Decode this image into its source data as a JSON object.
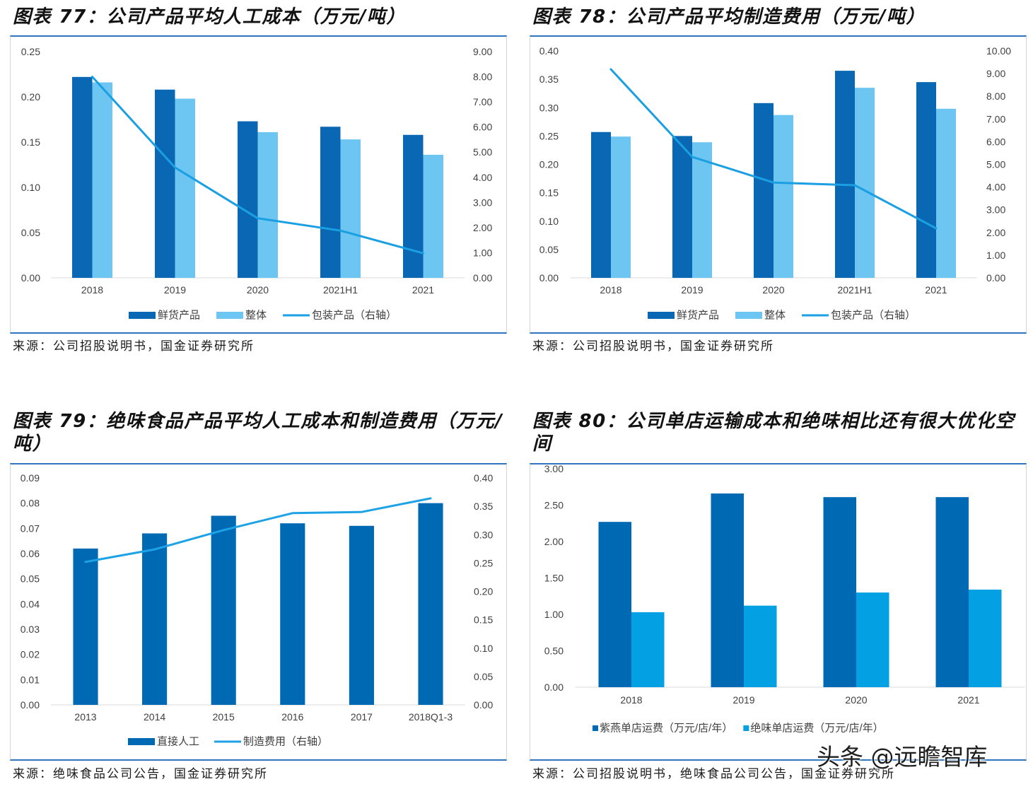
{
  "chart_data": [
    {
      "type": "bar",
      "title": "图表 77：公司产品平均人工成本（万元/吨）",
      "source": "来源：公司招股说明书，国金证券研究所",
      "categories": [
        "2018",
        "2019",
        "2020",
        "2021H1",
        "2021"
      ],
      "ylim": [
        0,
        0.25
      ],
      "yticks": [
        "0.00",
        "0.05",
        "0.10",
        "0.15",
        "0.20",
        "0.25"
      ],
      "y2lim": [
        0,
        9
      ],
      "y2ticks": [
        "0.00",
        "1.00",
        "2.00",
        "3.00",
        "4.00",
        "5.00",
        "6.00",
        "7.00",
        "8.00",
        "9.00"
      ],
      "grid": false,
      "legend": "bottom",
      "series": [
        {
          "name": "鲜货产品",
          "type": "bar",
          "secondary_axis": false,
          "color": "#0A67B4",
          "values": [
            0.222,
            0.208,
            0.173,
            0.167,
            0.158
          ]
        },
        {
          "name": "整体",
          "type": "bar",
          "secondary_axis": false,
          "color": "#6DC5F1",
          "values": [
            0.216,
            0.198,
            0.161,
            0.153,
            0.136
          ]
        },
        {
          "name": "包装产品（右轴）",
          "type": "line",
          "secondary_axis": true,
          "color": "#1B9FE3",
          "values": [
            8.0,
            4.39,
            2.37,
            1.88,
            0.98
          ]
        }
      ]
    },
    {
      "type": "bar",
      "title": "图表 78：公司产品平均制造费用（万元/吨）",
      "source": "来源：公司招股说明书，国金证券研究所",
      "categories": [
        "2018",
        "2019",
        "2020",
        "2021H1",
        "2021"
      ],
      "ylim": [
        0,
        0.4
      ],
      "yticks": [
        "0.00",
        "0.05",
        "0.10",
        "0.15",
        "0.20",
        "0.25",
        "0.30",
        "0.35",
        "0.40"
      ],
      "y2lim": [
        0,
        10
      ],
      "y2ticks": [
        "0.00",
        "1.00",
        "2.00",
        "3.00",
        "4.00",
        "5.00",
        "6.00",
        "7.00",
        "8.00",
        "9.00",
        "10.00"
      ],
      "grid": false,
      "legend": "bottom",
      "series": [
        {
          "name": "鲜货产品",
          "type": "bar",
          "secondary_axis": false,
          "color": "#0A67B4",
          "values": [
            0.257,
            0.25,
            0.308,
            0.365,
            0.345
          ]
        },
        {
          "name": "整体",
          "type": "bar",
          "secondary_axis": false,
          "color": "#6DC5F1",
          "values": [
            0.249,
            0.239,
            0.287,
            0.335,
            0.298
          ]
        },
        {
          "name": "包装产品（右轴）",
          "type": "line",
          "secondary_axis": true,
          "color": "#1B9FE3",
          "values": [
            9.19,
            5.33,
            4.2,
            4.08,
            2.18
          ]
        }
      ]
    },
    {
      "type": "bar",
      "title": "图表 79：绝味食品产品平均人工成本和制造费用（万元/吨）",
      "source": "来源：绝味食品公司公告，国金证券研究所",
      "categories": [
        "2013",
        "2014",
        "2015",
        "2016",
        "2017",
        "2018Q1-3"
      ],
      "ylim": [
        0,
        0.09
      ],
      "yticks": [
        "0.00",
        "0.01",
        "0.02",
        "0.03",
        "0.04",
        "0.05",
        "0.06",
        "0.07",
        "0.08",
        "0.09"
      ],
      "y2lim": [
        0,
        0.4
      ],
      "y2ticks": [
        "0.00",
        "0.05",
        "0.10",
        "0.15",
        "0.20",
        "0.25",
        "0.30",
        "0.35",
        "0.40"
      ],
      "grid": false,
      "legend": "bottom",
      "series": [
        {
          "name": "直接人工",
          "type": "bar",
          "secondary_axis": false,
          "color": "#0069B4",
          "values": [
            0.062,
            0.068,
            0.075,
            0.072,
            0.071,
            0.08
          ]
        },
        {
          "name": "制造费用（右轴）",
          "type": "line",
          "secondary_axis": true,
          "color": "#1EA2E6",
          "values": [
            0.252,
            0.274,
            0.308,
            0.338,
            0.34,
            0.364
          ]
        }
      ]
    },
    {
      "type": "bar",
      "title": "图表 80：公司单店运输成本和绝味相比还有很大优化空间",
      "source": "来源：公司招股说明书，绝味食品公司公告，国金证券研究所",
      "categories": [
        "2018",
        "2019",
        "2020",
        "2021"
      ],
      "ylim": [
        0,
        3
      ],
      "yticks": [
        "0.00",
        "0.50",
        "1.00",
        "1.50",
        "2.00",
        "2.50",
        "3.00"
      ],
      "grid": false,
      "legend": "bottom",
      "series": [
        {
          "name": "紫燕单店运费（万元/店/年）",
          "type": "bar",
          "secondary_axis": false,
          "color": "#0069B4",
          "values": [
            2.27,
            2.66,
            2.61,
            2.61
          ]
        },
        {
          "name": "绝味单店运费（万元/店/年）",
          "type": "bar",
          "secondary_axis": false,
          "color": "#04A0E4",
          "values": [
            1.03,
            1.12,
            1.3,
            1.34
          ]
        }
      ]
    }
  ],
  "watermark": "头条 @远瞻智库"
}
